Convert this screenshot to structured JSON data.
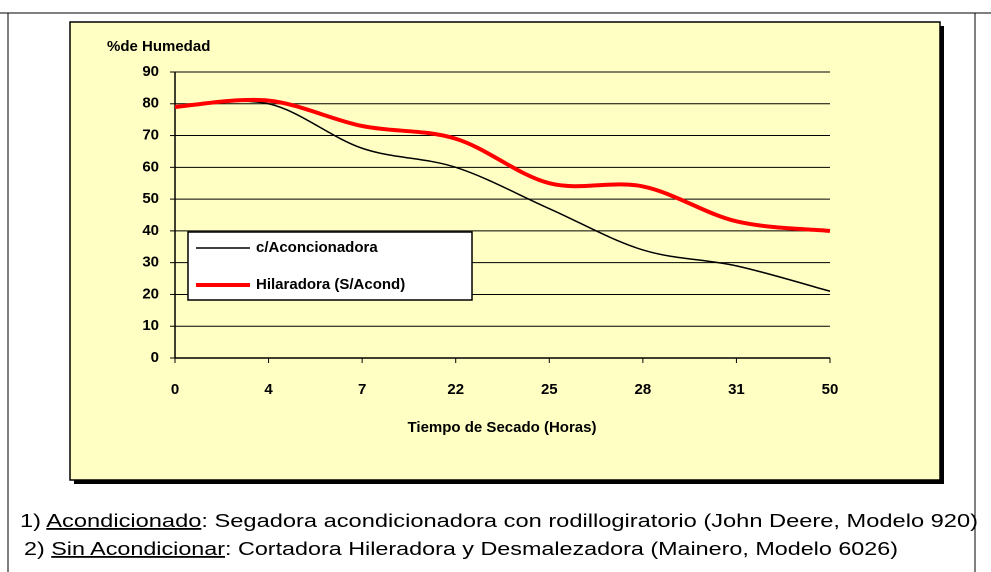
{
  "chart_data": {
    "type": "line",
    "y_label": "%de Humedad",
    "x_label": "Tiempo de Secado (Horas)",
    "categories": [
      0,
      4,
      7,
      22,
      25,
      28,
      31,
      50
    ],
    "series": [
      {
        "name": "c/Aconcionadora",
        "color": "#000000",
        "values": [
          79,
          80,
          66,
          60,
          47,
          34,
          29,
          21
        ]
      },
      {
        "name": "Hilaradora (S/Acond)",
        "color": "#ff0000",
        "values": [
          79,
          81,
          73,
          69,
          55,
          54,
          43,
          40
        ]
      }
    ],
    "ylim": [
      0,
      90
    ],
    "yticks": [
      0,
      10,
      20,
      30,
      40,
      50,
      60,
      70,
      80,
      90
    ],
    "grid": true,
    "smooth": true
  },
  "notes": [
    {
      "number": "1)",
      "term": "Acondicionado",
      "text": ": Segadora acondicionadora con rodillogiratorio (John Deere, Modelo 920)"
    },
    {
      "number": "2)",
      "term": "Sin Acondicionar",
      "text": ": Cortadora Hileradora y Desmalezadora (Mainero, Modelo 6026)"
    }
  ]
}
